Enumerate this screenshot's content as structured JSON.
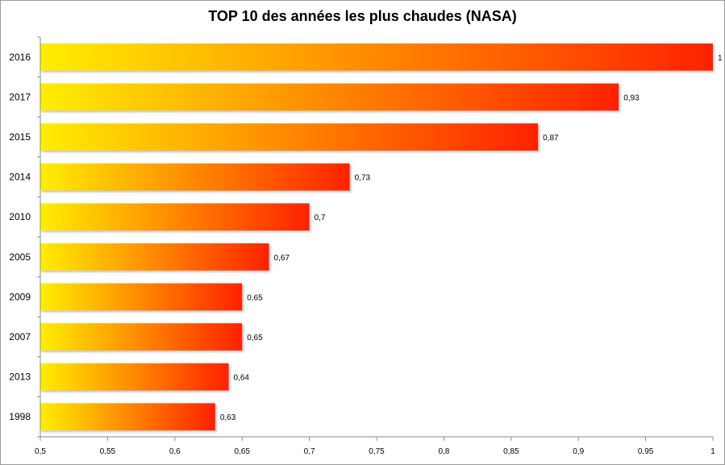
{
  "chart_data": {
    "type": "bar",
    "orientation": "horizontal",
    "title": "TOP 10 des années les plus chaudes (NASA)",
    "categories": [
      "2016",
      "2017",
      "2015",
      "2014",
      "2010",
      "2005",
      "2009",
      "2007",
      "2013",
      "1998"
    ],
    "values": [
      1,
      0.93,
      0.87,
      0.73,
      0.7,
      0.67,
      0.65,
      0.65,
      0.64,
      0.63
    ],
    "value_labels": [
      "1",
      "0,93",
      "0,87",
      "0,73",
      "0,7",
      "0,67",
      "0,65",
      "0,65",
      "0,64",
      "0,63"
    ],
    "xlim": [
      0.5,
      1
    ],
    "xticks": [
      0.5,
      0.55,
      0.6,
      0.65,
      0.7,
      0.75,
      0.8,
      0.85,
      0.9,
      0.95,
      1
    ],
    "xtick_labels": [
      "0,5",
      "0,55",
      "0,6",
      "0,65",
      "0,7",
      "0,75",
      "0,8",
      "0,85",
      "0,9",
      "0,95",
      "1"
    ],
    "grid": false,
    "legend": "none",
    "bar_gradient": [
      "#ffee00",
      "#ff2200"
    ]
  }
}
